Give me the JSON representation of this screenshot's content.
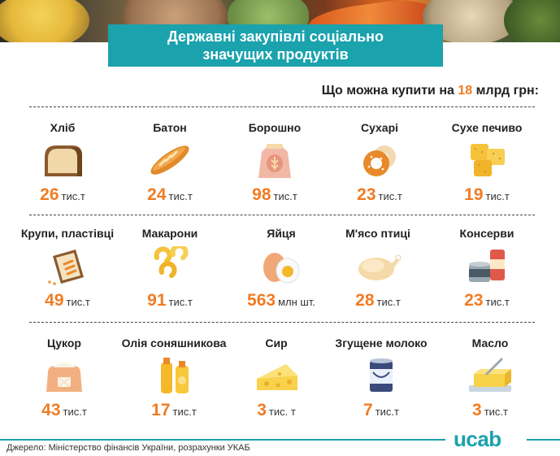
{
  "header": {
    "title_line1": "Державні закупівлі соціально",
    "title_line2": "значущих продуктів"
  },
  "subtitle": {
    "prefix": "Що можна купити на ",
    "value": "18",
    "suffix": " млрд грн:"
  },
  "products": [
    {
      "name": "Хліб",
      "value": "26",
      "unit": "тис.т",
      "icon": "bread-icon"
    },
    {
      "name": "Батон",
      "value": "24",
      "unit": "тис.т",
      "icon": "baguette-icon"
    },
    {
      "name": "Борошно",
      "value": "98",
      "unit": "тис.т",
      "icon": "flour-sack-icon"
    },
    {
      "name": "Сухарі",
      "value": "23",
      "unit": "тис.т",
      "icon": "bagel-icon"
    },
    {
      "name": "Сухе печиво",
      "value": "19",
      "unit": "тис.т",
      "icon": "cookies-icon"
    },
    {
      "name": "Крупи, пластівці",
      "value": "49",
      "unit": "тис.т",
      "icon": "cereal-bag-icon"
    },
    {
      "name": "Макарони",
      "value": "91",
      "unit": "тис.т",
      "icon": "pasta-icon"
    },
    {
      "name": "Яйця",
      "value": "563",
      "unit": "млн шт.",
      "icon": "eggs-icon"
    },
    {
      "name": "М'ясо птиці",
      "value": "28",
      "unit": "тис.т",
      "icon": "chicken-icon"
    },
    {
      "name": "Консерви",
      "value": "23",
      "unit": "тис.т",
      "icon": "cans-icon"
    },
    {
      "name": "Цукор",
      "value": "43",
      "unit": "тис.т",
      "icon": "sugar-sack-icon"
    },
    {
      "name": "Олія соняшникова",
      "value": "17",
      "unit": "тис.т",
      "icon": "oil-bottles-icon"
    },
    {
      "name": "Сир",
      "value": "3",
      "unit": "тис. т",
      "icon": "cheese-icon"
    },
    {
      "name": "Згущене молоко",
      "value": "7",
      "unit": "тис.т",
      "icon": "condensed-milk-icon"
    },
    {
      "name": "Масло",
      "value": "3",
      "unit": "тис.т",
      "icon": "butter-icon"
    }
  ],
  "footer": {
    "source": "Джерело: Міністерство фінансів України, розрахунки УКАБ",
    "logo": "ucab"
  },
  "colors": {
    "accent": "#f07c24",
    "brand": "#1aa2ad"
  }
}
